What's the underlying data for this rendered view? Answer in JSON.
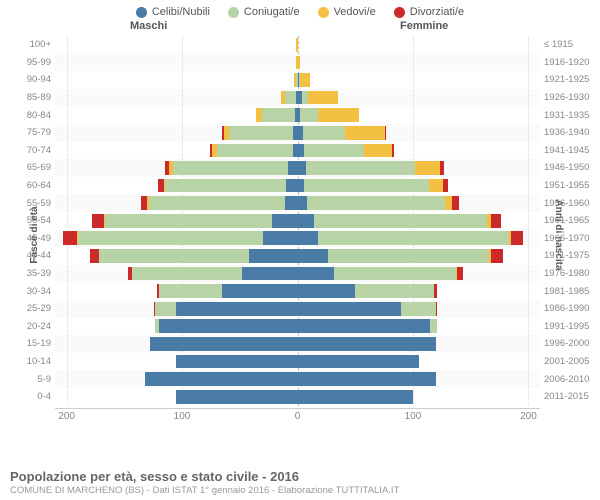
{
  "legend": [
    {
      "label": "Celibi/Nubili",
      "color": "#4a7ba6"
    },
    {
      "label": "Coniugati/e",
      "color": "#b8d4a6"
    },
    {
      "label": "Vedovi/e",
      "color": "#f4c042"
    },
    {
      "label": "Divorziati/e",
      "color": "#cc2a2a"
    }
  ],
  "header": {
    "male": "Maschi",
    "female": "Femmine"
  },
  "axes": {
    "left_title": "Fasce di età",
    "right_title": "Anni di nascita",
    "x_ticks": [
      200,
      100,
      0,
      100,
      200
    ],
    "x_max": 210
  },
  "colors": {
    "celibi": "#4a7ba6",
    "coniugati": "#b8d4a6",
    "vedovi": "#f4c042",
    "divorziati": "#cc2a2a",
    "grid": "#dddddd",
    "center": "#bbbbbb",
    "bg": "#ffffff"
  },
  "rows": [
    {
      "age": "100+",
      "year": "≤ 1915",
      "m": [
        0,
        0,
        1,
        0
      ],
      "f": [
        0,
        0,
        0,
        0
      ]
    },
    {
      "age": "95-99",
      "year": "1916-1920",
      "m": [
        0,
        0,
        1,
        0
      ],
      "f": [
        0,
        0,
        2,
        0
      ]
    },
    {
      "age": "90-94",
      "year": "1921-1925",
      "m": [
        0,
        1,
        2,
        0
      ],
      "f": [
        1,
        1,
        9,
        0
      ]
    },
    {
      "age": "85-89",
      "year": "1926-1930",
      "m": [
        1,
        10,
        3,
        0
      ],
      "f": [
        4,
        5,
        26,
        0
      ]
    },
    {
      "age": "80-84",
      "year": "1931-1935",
      "m": [
        2,
        29,
        5,
        0
      ],
      "f": [
        2,
        16,
        35,
        0
      ]
    },
    {
      "age": "75-79",
      "year": "1936-1940",
      "m": [
        4,
        55,
        5,
        1
      ],
      "f": [
        5,
        36,
        35,
        1
      ]
    },
    {
      "age": "70-74",
      "year": "1941-1945",
      "m": [
        4,
        66,
        4,
        2
      ],
      "f": [
        6,
        52,
        24,
        2
      ]
    },
    {
      "age": "65-69",
      "year": "1946-1950",
      "m": [
        8,
        100,
        3,
        4
      ],
      "f": [
        7,
        95,
        21,
        4
      ]
    },
    {
      "age": "60-64",
      "year": "1951-1955",
      "m": [
        10,
        105,
        1,
        5
      ],
      "f": [
        6,
        108,
        12,
        4
      ]
    },
    {
      "age": "55-59",
      "year": "1956-1960",
      "m": [
        11,
        118,
        1,
        6
      ],
      "f": [
        8,
        120,
        6,
        6
      ]
    },
    {
      "age": "50-54",
      "year": "1961-1965",
      "m": [
        22,
        145,
        1,
        10
      ],
      "f": [
        14,
        150,
        4,
        8
      ]
    },
    {
      "age": "45-49",
      "year": "1966-1970",
      "m": [
        30,
        160,
        1,
        12
      ],
      "f": [
        18,
        165,
        2,
        10
      ]
    },
    {
      "age": "40-44",
      "year": "1971-1975",
      "m": [
        42,
        130,
        0,
        8
      ],
      "f": [
        26,
        140,
        2,
        10
      ]
    },
    {
      "age": "35-39",
      "year": "1976-1980",
      "m": [
        48,
        95,
        0,
        4
      ],
      "f": [
        32,
        105,
        1,
        5
      ]
    },
    {
      "age": "30-34",
      "year": "1981-1985",
      "m": [
        65,
        55,
        0,
        2
      ],
      "f": [
        50,
        68,
        0,
        3
      ]
    },
    {
      "age": "25-29",
      "year": "1986-1990",
      "m": [
        105,
        18,
        0,
        1
      ],
      "f": [
        90,
        30,
        0,
        1
      ]
    },
    {
      "age": "20-24",
      "year": "1991-1995",
      "m": [
        120,
        3,
        0,
        0
      ],
      "f": [
        115,
        6,
        0,
        0
      ]
    },
    {
      "age": "15-19",
      "year": "1996-2000",
      "m": [
        128,
        0,
        0,
        0
      ],
      "f": [
        120,
        0,
        0,
        0
      ]
    },
    {
      "age": "10-14",
      "year": "2001-2005",
      "m": [
        105,
        0,
        0,
        0
      ],
      "f": [
        105,
        0,
        0,
        0
      ]
    },
    {
      "age": "5-9",
      "year": "2006-2010",
      "m": [
        132,
        0,
        0,
        0
      ],
      "f": [
        120,
        0,
        0,
        0
      ]
    },
    {
      "age": "0-4",
      "year": "2011-2015",
      "m": [
        105,
        0,
        0,
        0
      ],
      "f": [
        100,
        0,
        0,
        0
      ]
    }
  ],
  "footer": {
    "title": "Popolazione per età, sesso e stato civile - 2016",
    "sub": "COMUNE DI MARCHENO (BS) - Dati ISTAT 1° gennaio 2016 - Elaborazione TUTTITALIA.IT"
  }
}
